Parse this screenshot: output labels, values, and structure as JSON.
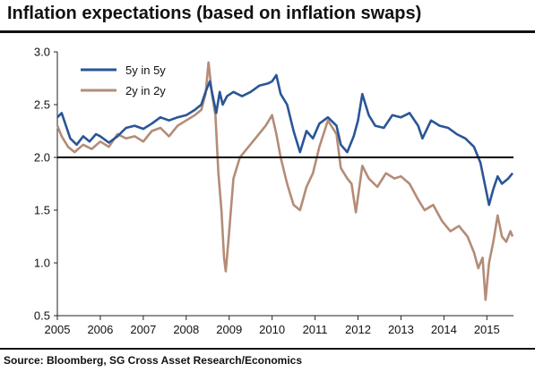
{
  "header": {
    "title": "Inflation expectations (based on inflation swaps)"
  },
  "footer": {
    "source": "Source: Bloomberg, SG Cross Asset Research/Economics"
  },
  "chart_data": {
    "type": "line",
    "title": "Inflation expectations (based on inflation swaps)",
    "xlabel": "",
    "ylabel": "",
    "xlim": [
      2005.0,
      2015.62
    ],
    "ylim": [
      0.5,
      3.0
    ],
    "x_ticks": [
      2005,
      2006,
      2007,
      2008,
      2009,
      2010,
      2011,
      2012,
      2013,
      2014,
      2015
    ],
    "x_tick_labels": [
      "2005",
      "2006",
      "2007",
      "2008",
      "2009",
      "2010",
      "2011",
      "2012",
      "2013",
      "2014",
      "2015"
    ],
    "y_ticks": [
      0.5,
      1.0,
      1.5,
      2.0,
      2.5,
      3.0
    ],
    "y_tick_labels": [
      "0.5",
      "1.0",
      "1.5",
      "2.0",
      "2.5",
      "3.0"
    ],
    "grid": false,
    "legend_position": "top-left",
    "reference_line": {
      "y": 2.0,
      "color": "#000000"
    },
    "series": [
      {
        "name": "5y in 5y",
        "color": "#2a5597",
        "points": [
          [
            2005.0,
            2.38
          ],
          [
            2005.1,
            2.42
          ],
          [
            2005.2,
            2.3
          ],
          [
            2005.3,
            2.18
          ],
          [
            2005.45,
            2.12
          ],
          [
            2005.6,
            2.2
          ],
          [
            2005.75,
            2.15
          ],
          [
            2005.9,
            2.22
          ],
          [
            2006.0,
            2.2
          ],
          [
            2006.2,
            2.14
          ],
          [
            2006.4,
            2.2
          ],
          [
            2006.6,
            2.28
          ],
          [
            2006.8,
            2.3
          ],
          [
            2007.0,
            2.27
          ],
          [
            2007.2,
            2.32
          ],
          [
            2007.4,
            2.38
          ],
          [
            2007.6,
            2.35
          ],
          [
            2007.8,
            2.38
          ],
          [
            2008.0,
            2.4
          ],
          [
            2008.2,
            2.45
          ],
          [
            2008.35,
            2.5
          ],
          [
            2008.45,
            2.62
          ],
          [
            2008.55,
            2.72
          ],
          [
            2008.62,
            2.58
          ],
          [
            2008.7,
            2.42
          ],
          [
            2008.78,
            2.62
          ],
          [
            2008.85,
            2.5
          ],
          [
            2008.95,
            2.58
          ],
          [
            2009.1,
            2.62
          ],
          [
            2009.3,
            2.58
          ],
          [
            2009.5,
            2.62
          ],
          [
            2009.7,
            2.68
          ],
          [
            2009.9,
            2.7
          ],
          [
            2010.0,
            2.72
          ],
          [
            2010.1,
            2.78
          ],
          [
            2010.2,
            2.6
          ],
          [
            2010.35,
            2.5
          ],
          [
            2010.5,
            2.25
          ],
          [
            2010.65,
            2.05
          ],
          [
            2010.8,
            2.25
          ],
          [
            2010.95,
            2.18
          ],
          [
            2011.1,
            2.32
          ],
          [
            2011.3,
            2.38
          ],
          [
            2011.5,
            2.3
          ],
          [
            2011.6,
            2.12
          ],
          [
            2011.75,
            2.05
          ],
          [
            2011.9,
            2.2
          ],
          [
            2012.0,
            2.35
          ],
          [
            2012.1,
            2.6
          ],
          [
            2012.25,
            2.4
          ],
          [
            2012.4,
            2.3
          ],
          [
            2012.6,
            2.28
          ],
          [
            2012.8,
            2.4
          ],
          [
            2013.0,
            2.38
          ],
          [
            2013.2,
            2.42
          ],
          [
            2013.4,
            2.3
          ],
          [
            2013.5,
            2.18
          ],
          [
            2013.7,
            2.35
          ],
          [
            2013.9,
            2.3
          ],
          [
            2014.1,
            2.28
          ],
          [
            2014.3,
            2.22
          ],
          [
            2014.5,
            2.18
          ],
          [
            2014.7,
            2.1
          ],
          [
            2014.85,
            1.95
          ],
          [
            2014.95,
            1.75
          ],
          [
            2015.05,
            1.55
          ],
          [
            2015.15,
            1.7
          ],
          [
            2015.25,
            1.82
          ],
          [
            2015.35,
            1.75
          ],
          [
            2015.5,
            1.8
          ],
          [
            2015.6,
            1.85
          ]
        ]
      },
      {
        "name": "2y in 2y",
        "color": "#b48c77",
        "points": [
          [
            2005.0,
            2.3
          ],
          [
            2005.1,
            2.2
          ],
          [
            2005.25,
            2.1
          ],
          [
            2005.4,
            2.05
          ],
          [
            2005.6,
            2.12
          ],
          [
            2005.8,
            2.08
          ],
          [
            2006.0,
            2.15
          ],
          [
            2006.2,
            2.1
          ],
          [
            2006.4,
            2.22
          ],
          [
            2006.6,
            2.18
          ],
          [
            2006.8,
            2.2
          ],
          [
            2007.0,
            2.15
          ],
          [
            2007.2,
            2.25
          ],
          [
            2007.4,
            2.28
          ],
          [
            2007.6,
            2.2
          ],
          [
            2007.8,
            2.3
          ],
          [
            2008.0,
            2.35
          ],
          [
            2008.2,
            2.4
          ],
          [
            2008.35,
            2.45
          ],
          [
            2008.45,
            2.6
          ],
          [
            2008.52,
            2.9
          ],
          [
            2008.6,
            2.6
          ],
          [
            2008.68,
            2.4
          ],
          [
            2008.75,
            1.85
          ],
          [
            2008.82,
            1.5
          ],
          [
            2008.88,
            1.05
          ],
          [
            2008.92,
            0.92
          ],
          [
            2008.98,
            1.2
          ],
          [
            2009.1,
            1.8
          ],
          [
            2009.25,
            2.0
          ],
          [
            2009.45,
            2.1
          ],
          [
            2009.65,
            2.2
          ],
          [
            2009.85,
            2.3
          ],
          [
            2010.0,
            2.4
          ],
          [
            2010.1,
            2.22
          ],
          [
            2010.2,
            2.0
          ],
          [
            2010.35,
            1.75
          ],
          [
            2010.5,
            1.55
          ],
          [
            2010.65,
            1.5
          ],
          [
            2010.8,
            1.72
          ],
          [
            2010.95,
            1.85
          ],
          [
            2011.1,
            2.1
          ],
          [
            2011.3,
            2.35
          ],
          [
            2011.5,
            2.22
          ],
          [
            2011.6,
            1.9
          ],
          [
            2011.75,
            1.8
          ],
          [
            2011.85,
            1.75
          ],
          [
            2011.95,
            1.48
          ],
          [
            2012.1,
            1.92
          ],
          [
            2012.25,
            1.8
          ],
          [
            2012.45,
            1.72
          ],
          [
            2012.65,
            1.85
          ],
          [
            2012.85,
            1.8
          ],
          [
            2013.0,
            1.82
          ],
          [
            2013.2,
            1.75
          ],
          [
            2013.4,
            1.6
          ],
          [
            2013.55,
            1.5
          ],
          [
            2013.75,
            1.55
          ],
          [
            2013.95,
            1.4
          ],
          [
            2014.15,
            1.3
          ],
          [
            2014.35,
            1.35
          ],
          [
            2014.55,
            1.25
          ],
          [
            2014.7,
            1.1
          ],
          [
            2014.8,
            0.95
          ],
          [
            2014.9,
            1.05
          ],
          [
            2014.97,
            0.65
          ],
          [
            2015.05,
            1.0
          ],
          [
            2015.15,
            1.2
          ],
          [
            2015.25,
            1.45
          ],
          [
            2015.35,
            1.25
          ],
          [
            2015.45,
            1.2
          ],
          [
            2015.55,
            1.3
          ],
          [
            2015.6,
            1.25
          ]
        ]
      }
    ]
  }
}
